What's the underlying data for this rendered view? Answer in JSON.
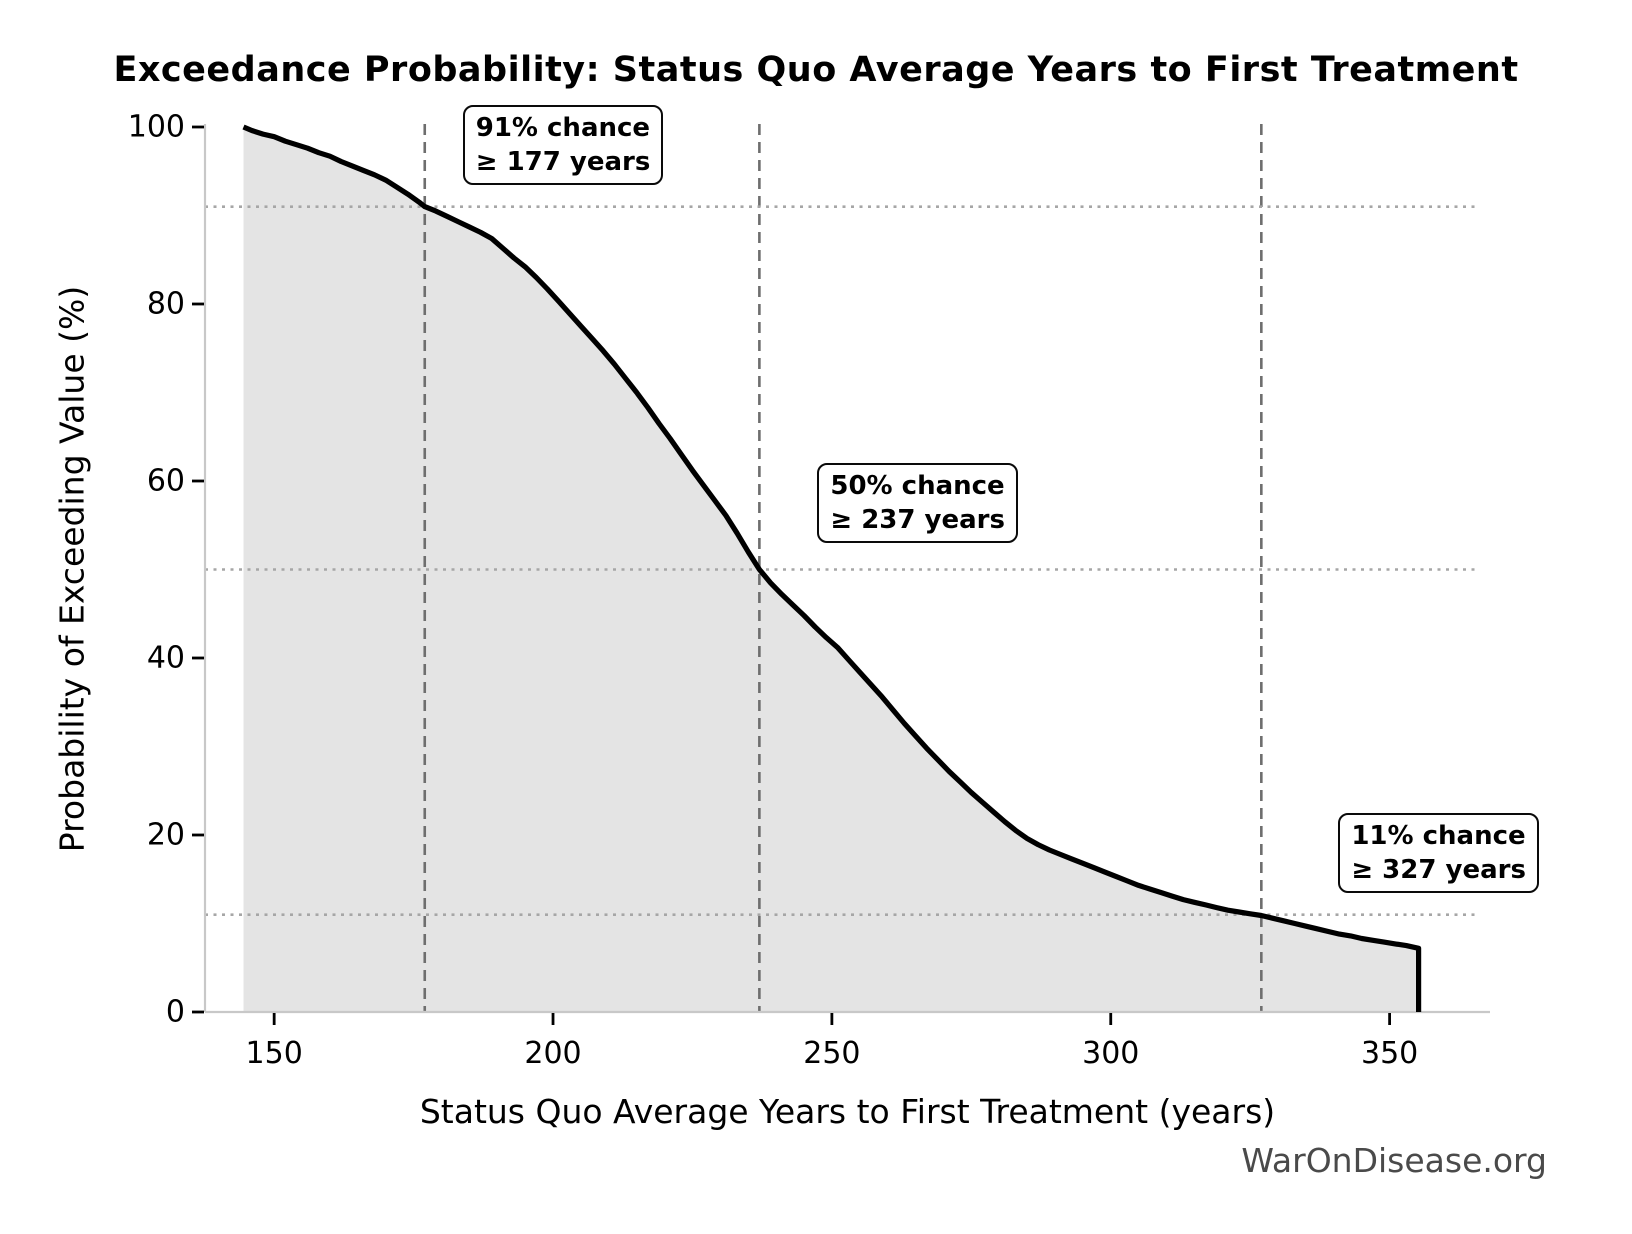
{
  "title": "Exceedance Probability: Status Quo Average Years to First Treatment",
  "watermark": "WarOnDisease.org",
  "chart_data": {
    "type": "area",
    "title": "Exceedance Probability: Status Quo Average Years to First Treatment",
    "xlabel": "Status Quo Average Years to First Treatment (years)",
    "ylabel": "Probability of Exceeding Value (%)",
    "xlim": [
      137.6,
      368
    ],
    "ylim": [
      0,
      100
    ],
    "x_ticks": [
      "150",
      "200",
      "250",
      "300",
      "350"
    ],
    "x_tick_values": [
      150,
      200,
      250,
      300,
      350
    ],
    "y_ticks": [
      "0",
      "20",
      "40",
      "60",
      "80",
      "100"
    ],
    "y_tick_values": [
      0,
      20,
      40,
      60,
      80,
      100
    ],
    "grid": "off",
    "legend": "none",
    "series": [
      {
        "name": "exceedance-curve",
        "points": [
          [
            144.5,
            100
          ],
          [
            146,
            99.6
          ],
          [
            148,
            99.2
          ],
          [
            150,
            98.9
          ],
          [
            152,
            98.4
          ],
          [
            154,
            98.0
          ],
          [
            156,
            97.6
          ],
          [
            158,
            97.1
          ],
          [
            160,
            96.7
          ],
          [
            162,
            96.1
          ],
          [
            164,
            95.6
          ],
          [
            166,
            95.1
          ],
          [
            168,
            94.6
          ],
          [
            170,
            94.0
          ],
          [
            172,
            93.2
          ],
          [
            174,
            92.4
          ],
          [
            176,
            91.5
          ],
          [
            177,
            91.0
          ],
          [
            179,
            90.5
          ],
          [
            181,
            89.9
          ],
          [
            183,
            89.3
          ],
          [
            185,
            88.7
          ],
          [
            187,
            88.1
          ],
          [
            189,
            87.4
          ],
          [
            191,
            86.3
          ],
          [
            193,
            85.2
          ],
          [
            195,
            84.2
          ],
          [
            197,
            83.0
          ],
          [
            199,
            81.7
          ],
          [
            201,
            80.3
          ],
          [
            203,
            78.9
          ],
          [
            205,
            77.5
          ],
          [
            207,
            76.1
          ],
          [
            209,
            74.7
          ],
          [
            211,
            73.2
          ],
          [
            213,
            71.6
          ],
          [
            215,
            70.0
          ],
          [
            217,
            68.3
          ],
          [
            219,
            66.5
          ],
          [
            221,
            64.8
          ],
          [
            223,
            63.0
          ],
          [
            225,
            61.2
          ],
          [
            227,
            59.5
          ],
          [
            229,
            57.8
          ],
          [
            231,
            56.1
          ],
          [
            233,
            54.1
          ],
          [
            235,
            52.0
          ],
          [
            237,
            50.0
          ],
          [
            239,
            48.5
          ],
          [
            241,
            47.2
          ],
          [
            243,
            46.0
          ],
          [
            245,
            44.8
          ],
          [
            247,
            43.5
          ],
          [
            249,
            42.3
          ],
          [
            251,
            41.2
          ],
          [
            253,
            39.8
          ],
          [
            255,
            38.4
          ],
          [
            257,
            37.0
          ],
          [
            259,
            35.6
          ],
          [
            261,
            34.1
          ],
          [
            263,
            32.6
          ],
          [
            265,
            31.2
          ],
          [
            267,
            29.8
          ],
          [
            269,
            28.5
          ],
          [
            271,
            27.2
          ],
          [
            273,
            26.0
          ],
          [
            275,
            24.8
          ],
          [
            277,
            23.7
          ],
          [
            279,
            22.6
          ],
          [
            281,
            21.5
          ],
          [
            283,
            20.5
          ],
          [
            285,
            19.6
          ],
          [
            287,
            18.9
          ],
          [
            289,
            18.3
          ],
          [
            291,
            17.8
          ],
          [
            293,
            17.3
          ],
          [
            295,
            16.8
          ],
          [
            297,
            16.3
          ],
          [
            299,
            15.8
          ],
          [
            301,
            15.3
          ],
          [
            303,
            14.8
          ],
          [
            305,
            14.3
          ],
          [
            307,
            13.9
          ],
          [
            309,
            13.5
          ],
          [
            311,
            13.1
          ],
          [
            313,
            12.7
          ],
          [
            315,
            12.4
          ],
          [
            317,
            12.1
          ],
          [
            319,
            11.8
          ],
          [
            321,
            11.5
          ],
          [
            323,
            11.3
          ],
          [
            325,
            11.1
          ],
          [
            327,
            10.9
          ],
          [
            329,
            10.6
          ],
          [
            331,
            10.3
          ],
          [
            333,
            10.0
          ],
          [
            335,
            9.7
          ],
          [
            337,
            9.4
          ],
          [
            339,
            9.1
          ],
          [
            341,
            8.8
          ],
          [
            343,
            8.6
          ],
          [
            345,
            8.3
          ],
          [
            347,
            8.1
          ],
          [
            349,
            7.9
          ],
          [
            351,
            7.7
          ],
          [
            353,
            7.5
          ],
          [
            354.5,
            7.3
          ],
          [
            355.2,
            7.2
          ]
        ],
        "terminal_drop": {
          "x": 355.2,
          "from_y": 7.2,
          "to_y": 0
        }
      }
    ],
    "reference_lines": {
      "vertical_dashed_x": [
        177,
        237,
        327
      ],
      "horizontal_dotted_y": [
        91,
        50,
        11
      ]
    },
    "annotations": [
      {
        "line1": "91% chance",
        "line2": "≥ 177 years",
        "x": 177,
        "y": 91
      },
      {
        "line1": "50% chance",
        "line2": "≥ 237 years",
        "x": 237,
        "y": 50
      },
      {
        "line1": "11% chance",
        "line2": "≥ 327 years",
        "x": 327,
        "y": 11
      }
    ],
    "colors": {
      "fill": "#e4e4e4",
      "curve": "#000000",
      "dashed_line": "#6e6e6e",
      "dotted_line": "#a6a6a6",
      "spine": "#c8c8c8",
      "tick_mark": "#000000",
      "watermark": "#4a4a4a",
      "annotation_border": "#0a0a0a",
      "annotation_bg": "#ffffff"
    }
  }
}
